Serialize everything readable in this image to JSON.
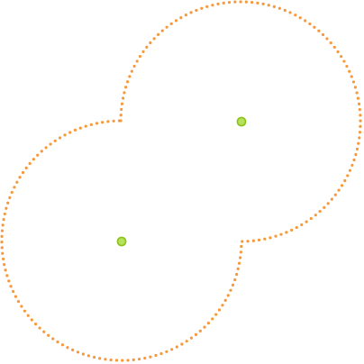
{
  "diagram": {
    "shape": "union of two overlapping circles with dotted outline",
    "outline_style": "dotted",
    "colors": {
      "outline": "#f7983a",
      "center_fill": "#b6e15a",
      "center_stroke": "#8cc21c",
      "background": "#ffffff"
    },
    "circles": [
      {
        "id": "circle-lower-left",
        "has_center_marker": true
      },
      {
        "id": "circle-upper-right",
        "has_center_marker": true
      }
    ]
  }
}
